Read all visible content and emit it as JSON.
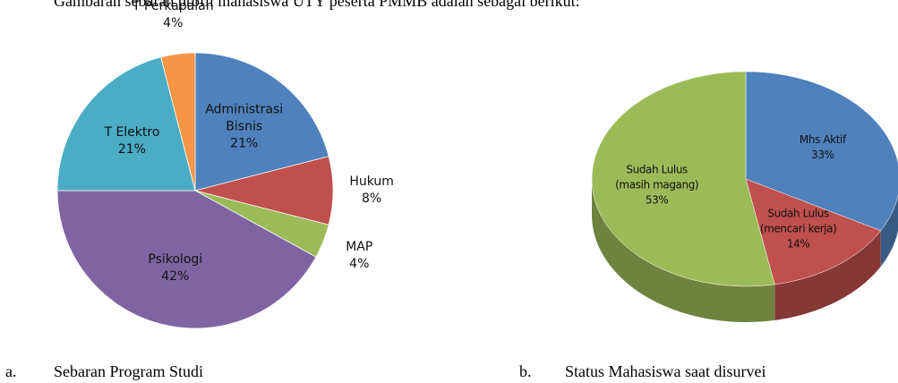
{
  "intro": "Gambaran sebaran profil mahasiswa UTY peserta PMMB adalah sebagai berikut:",
  "chart_data": [
    {
      "type": "pie",
      "caption_marker": "a.",
      "title": "Sebaran Program Studi",
      "categories": [
        "Administrasi Bisnis",
        "Hukum",
        "MAP",
        "Psikologi",
        "T Elektro",
        "T Perkapalan"
      ],
      "values": [
        21,
        8,
        4,
        42,
        21,
        4
      ],
      "value_labels": [
        "21%",
        "8%",
        "4%",
        "42%",
        "21%",
        "4%"
      ],
      "colors": [
        "#4f81bd",
        "#c0504d",
        "#9bbb59",
        "#8064a2",
        "#4bacc6",
        "#f79646"
      ],
      "three_d": false
    },
    {
      "type": "pie",
      "caption_marker": "b.",
      "title": "Status Mahasiswa saat disurvei",
      "categories": [
        "Mhs Aktif",
        "Sudah Lulus (mencari kerja)",
        "Sudah Lulus (masih magang)"
      ],
      "values": [
        33,
        14,
        53
      ],
      "value_labels": [
        "33%",
        "14%",
        "53%"
      ],
      "colors": [
        "#4f81bd",
        "#c0504d",
        "#9bbb59"
      ],
      "three_d": true
    }
  ]
}
